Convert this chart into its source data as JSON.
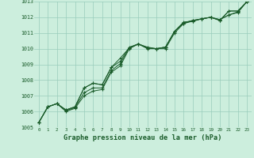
{
  "title": "Graphe pression niveau de la mer (hPa)",
  "background_color": "#cceedd",
  "grid_color": "#99ccbb",
  "line_color": "#1a5c2a",
  "marker_color": "#1a5c2a",
  "xlim": [
    -0.5,
    23.5
  ],
  "ylim": [
    1005,
    1013
  ],
  "xticks": [
    0,
    1,
    2,
    3,
    4,
    5,
    6,
    7,
    8,
    9,
    10,
    11,
    12,
    13,
    14,
    15,
    16,
    17,
    18,
    19,
    20,
    21,
    22,
    23
  ],
  "yticks": [
    1005,
    1006,
    1007,
    1008,
    1009,
    1010,
    1011,
    1012,
    1013
  ],
  "series": [
    [
      1005.3,
      1006.3,
      1006.5,
      1006.1,
      1006.3,
      1007.5,
      1007.8,
      1007.7,
      1008.8,
      1009.2,
      1010.1,
      1010.3,
      1010.1,
      1010.0,
      1010.1,
      1011.1,
      1011.6,
      1011.8,
      1011.9,
      1012.0,
      1011.8,
      1012.4,
      1012.4,
      1013.0
    ],
    [
      1005.3,
      1006.3,
      1006.5,
      1006.1,
      1006.3,
      1007.5,
      1007.8,
      1007.7,
      1008.8,
      1009.4,
      1010.05,
      1010.3,
      1010.05,
      1010.0,
      1010.1,
      1011.1,
      1011.65,
      1011.8,
      1011.9,
      1012.0,
      1011.8,
      1012.4,
      1012.4,
      1013.0
    ],
    [
      1005.3,
      1006.3,
      1006.5,
      1006.05,
      1006.25,
      1007.2,
      1007.5,
      1007.5,
      1008.6,
      1009.05,
      1010.05,
      1010.3,
      1010.05,
      1010.0,
      1010.1,
      1011.1,
      1011.7,
      1011.75,
      1011.9,
      1012.0,
      1011.85,
      1012.15,
      1012.35,
      1013.0
    ],
    [
      1005.3,
      1006.3,
      1006.5,
      1006.0,
      1006.2,
      1007.0,
      1007.3,
      1007.4,
      1008.5,
      1008.9,
      1010.0,
      1010.3,
      1010.0,
      1010.0,
      1010.0,
      1011.0,
      1011.6,
      1011.75,
      1011.9,
      1012.0,
      1011.85,
      1012.15,
      1012.3,
      1013.0
    ]
  ]
}
